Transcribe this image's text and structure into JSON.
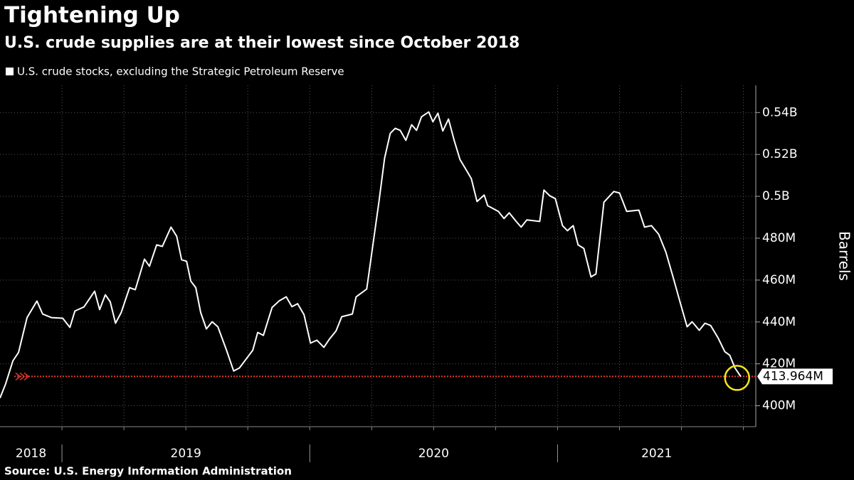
{
  "chart_data": {
    "type": "line",
    "title": "Tightening Up",
    "subtitle": "U.S. crude supplies are at their lowest since October 2018",
    "y_axis_label": "Barrels",
    "source": "Source: U.S. Energy Information Administration",
    "x": [
      2018.75,
      2018.773,
      2018.802,
      2018.825,
      2018.859,
      2018.899,
      2018.922,
      2018.957,
      2019.003,
      2019.032,
      2019.052,
      2019.089,
      2019.132,
      2019.152,
      2019.175,
      2019.195,
      2019.216,
      2019.239,
      2019.273,
      2019.296,
      2019.333,
      2019.353,
      2019.382,
      2019.405,
      2019.44,
      2019.463,
      2019.483,
      2019.503,
      2019.52,
      2019.54,
      2019.56,
      2019.583,
      2019.606,
      2019.629,
      2019.664,
      2019.693,
      2019.716,
      2019.77,
      2019.79,
      2019.813,
      2019.848,
      2019.876,
      2019.905,
      2019.928,
      2019.951,
      2019.977,
      2020.003,
      2020.029,
      2020.057,
      2020.08,
      2020.106,
      2020.129,
      2020.172,
      2020.187,
      2020.23,
      2020.279,
      2020.302,
      2020.325,
      2020.345,
      2020.365,
      2020.388,
      2020.411,
      2020.431,
      2020.451,
      2020.48,
      2020.497,
      2020.517,
      2020.537,
      2020.56,
      2020.583,
      2020.606,
      2020.632,
      2020.652,
      2020.675,
      2020.704,
      2020.718,
      2020.761,
      2020.784,
      2020.805,
      2020.833,
      2020.853,
      2020.876,
      2020.928,
      2020.945,
      2020.968,
      2020.991,
      2021.02,
      2021.04,
      2021.063,
      2021.083,
      2021.106,
      2021.135,
      2021.155,
      2021.187,
      2021.227,
      2021.25,
      2021.279,
      2021.328,
      2021.351,
      2021.379,
      2021.408,
      2021.437,
      2021.466,
      2021.494,
      2021.523,
      2021.543,
      2021.572,
      2021.595,
      2021.618,
      2021.647,
      2021.675,
      2021.695,
      2021.716,
      2021.739
    ],
    "series": [
      {
        "name": "U.S. crude stocks, excluding the Strategic Petroleum Reserve",
        "color": "#ffffff",
        "values": [
          403.7,
          410.5,
          421.4,
          425.5,
          442.1,
          450.0,
          443.8,
          442.1,
          441.8,
          437.4,
          445.2,
          447.2,
          454.7,
          445.9,
          453.0,
          449.6,
          439.4,
          444.5,
          456.4,
          455.4,
          470.0,
          466.6,
          476.8,
          476.1,
          485.3,
          480.9,
          469.7,
          469.0,
          459.5,
          456.4,
          444.5,
          436.7,
          440.1,
          437.7,
          426.5,
          416.6,
          418.0,
          426.5,
          435.0,
          433.6,
          446.9,
          450.0,
          452.0,
          447.3,
          448.7,
          443.5,
          429.9,
          431.3,
          427.9,
          431.9,
          435.7,
          442.5,
          443.8,
          452.0,
          455.7,
          497.2,
          518.2,
          530.1,
          532.5,
          531.5,
          526.7,
          534.2,
          531.5,
          538.0,
          540.3,
          535.6,
          539.7,
          531.2,
          536.9,
          526.7,
          517.6,
          512.5,
          508.4,
          497.5,
          500.6,
          495.5,
          492.8,
          489.4,
          492.1,
          488.0,
          485.3,
          488.7,
          488.0,
          503.0,
          500.3,
          498.9,
          486.0,
          483.6,
          486.0,
          476.8,
          475.1,
          461.5,
          462.9,
          497.2,
          502.3,
          501.6,
          492.8,
          493.4,
          485.3,
          486.0,
          481.9,
          473.4,
          461.5,
          449.6,
          437.7,
          440.1,
          436.0,
          439.4,
          438.3,
          432.6,
          425.8,
          424.1,
          418.0,
          413.964
        ]
      }
    ],
    "annotation": {
      "value": 413.964,
      "label": "413.964M",
      "line_color": "#e8392b",
      "circle_color": "#f5e71a"
    },
    "xlim": [
      2018.75,
      2021.8
    ],
    "xticks": [
      {
        "value": 2018.875,
        "label": "2018"
      },
      {
        "value": 2019.5,
        "label": "2019"
      },
      {
        "value": 2020.5,
        "label": "2020"
      },
      {
        "value": 2021.4,
        "label": "2021"
      }
    ],
    "year_dividers": [
      2019,
      2020,
      2021
    ],
    "xgrid": [
      2019,
      2019.25,
      2019.5,
      2019.75,
      2020,
      2020.25,
      2020.5,
      2020.75,
      2021,
      2021.25,
      2021.5,
      2021.75
    ],
    "ylim": [
      390,
      553
    ],
    "yticks": [
      {
        "value": 400,
        "label": "400M"
      },
      {
        "value": 420,
        "label": "420M"
      },
      {
        "value": 440,
        "label": "440M"
      },
      {
        "value": 460,
        "label": "460M"
      },
      {
        "value": 480,
        "label": "480M"
      },
      {
        "value": 500,
        "label": "0.5B"
      },
      {
        "value": 520,
        "label": "0.52B"
      },
      {
        "value": 540,
        "label": "0.54B"
      }
    ],
    "grid": true
  }
}
